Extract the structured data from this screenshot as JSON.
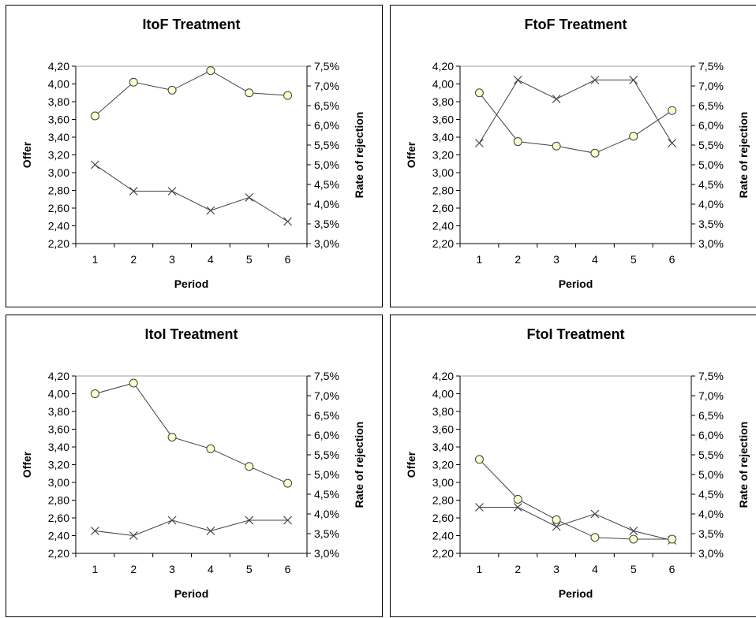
{
  "chart_data": [
    {
      "type": "line",
      "title": "ItoF Treatment",
      "xlabel": "Period",
      "ylabel": "Offer",
      "y2label": "Rate of rejection",
      "categories": [
        "1",
        "2",
        "3",
        "4",
        "5",
        "6"
      ],
      "ylim": [
        2.2,
        4.2
      ],
      "y2lim": [
        3.0,
        7.5
      ],
      "yticks": [
        "2,20",
        "2,40",
        "2,60",
        "2,80",
        "3,00",
        "3,20",
        "3,40",
        "3,60",
        "3,80",
        "4,00",
        "4,20"
      ],
      "y2ticks": [
        "3,0%",
        "3,5%",
        "4,0%",
        "4,5%",
        "5,0%",
        "5,5%",
        "6,0%",
        "6,5%",
        "7,0%",
        "7,5%"
      ],
      "series": [
        {
          "marker": "circle",
          "axis": "left",
          "values": [
            3.64,
            4.02,
            3.93,
            4.15,
            3.9,
            3.87
          ]
        },
        {
          "marker": "x",
          "axis": "right",
          "values": [
            5.0,
            4.33,
            4.33,
            3.84,
            4.17,
            3.56
          ]
        }
      ]
    },
    {
      "type": "line",
      "title": "FtoF Treatment",
      "xlabel": "Period",
      "ylabel": "Offer",
      "y2label": "Rate of rejection",
      "categories": [
        "1",
        "2",
        "3",
        "4",
        "5",
        "6"
      ],
      "ylim": [
        2.2,
        4.2
      ],
      "y2lim": [
        3.0,
        7.5
      ],
      "yticks": [
        "2,20",
        "2,40",
        "2,60",
        "2,80",
        "3,00",
        "3,20",
        "3,40",
        "3,60",
        "3,80",
        "4,00",
        "4,20"
      ],
      "y2ticks": [
        "3,0%",
        "3,5%",
        "4,0%",
        "4,5%",
        "5,0%",
        "5,5%",
        "6,0%",
        "6,5%",
        "7,0%",
        "7,5%"
      ],
      "series": [
        {
          "marker": "circle",
          "axis": "left",
          "values": [
            3.9,
            3.35,
            3.3,
            3.22,
            3.41,
            3.7
          ]
        },
        {
          "marker": "x",
          "axis": "right",
          "values": [
            5.55,
            7.15,
            6.67,
            7.15,
            7.15,
            5.55
          ]
        }
      ]
    },
    {
      "type": "line",
      "title": "ItoI Treatment",
      "xlabel": "Period",
      "ylabel": "Offer",
      "y2label": "Rate of rejection",
      "categories": [
        "1",
        "2",
        "3",
        "4",
        "5",
        "6"
      ],
      "ylim": [
        2.2,
        4.2
      ],
      "y2lim": [
        3.0,
        7.5
      ],
      "yticks": [
        "2,20",
        "2,40",
        "2,60",
        "2,80",
        "3,00",
        "3,20",
        "3,40",
        "3,60",
        "3,80",
        "4,00",
        "4,20"
      ],
      "y2ticks": [
        "3,0%",
        "3,5%",
        "4,0%",
        "4,5%",
        "5,0%",
        "5,5%",
        "6,0%",
        "6,5%",
        "7,0%",
        "7,5%"
      ],
      "series": [
        {
          "marker": "circle",
          "axis": "left",
          "values": [
            4.0,
            4.12,
            3.51,
            3.38,
            3.18,
            2.99
          ]
        },
        {
          "marker": "x",
          "axis": "right",
          "values": [
            3.57,
            3.45,
            3.84,
            3.57,
            3.84,
            3.84
          ]
        }
      ]
    },
    {
      "type": "line",
      "title": "FtoI Treatment",
      "xlabel": "Period",
      "ylabel": "Offer",
      "y2label": "Rate of rejection",
      "categories": [
        "1",
        "2",
        "3",
        "4",
        "5",
        "6"
      ],
      "ylim": [
        2.2,
        4.2
      ],
      "y2lim": [
        3.0,
        7.5
      ],
      "yticks": [
        "2,20",
        "2,40",
        "2,60",
        "2,80",
        "3,00",
        "3,20",
        "3,40",
        "3,60",
        "3,80",
        "4,00",
        "4,20"
      ],
      "y2ticks": [
        "3,0%",
        "3,5%",
        "4,0%",
        "4,5%",
        "5,0%",
        "5,5%",
        "6,0%",
        "6,5%",
        "7,0%",
        "7,5%"
      ],
      "series": [
        {
          "marker": "circle",
          "axis": "left",
          "values": [
            3.26,
            2.81,
            2.58,
            2.38,
            2.36,
            2.36
          ]
        },
        {
          "marker": "x",
          "axis": "right",
          "values": [
            4.17,
            4.17,
            3.68,
            4.0,
            3.57,
            3.33
          ]
        }
      ]
    }
  ],
  "colors": {
    "marker_fill": "#ffffcc",
    "line": "#404040",
    "axis": "#000000",
    "gridline": "#a0a0a0"
  }
}
